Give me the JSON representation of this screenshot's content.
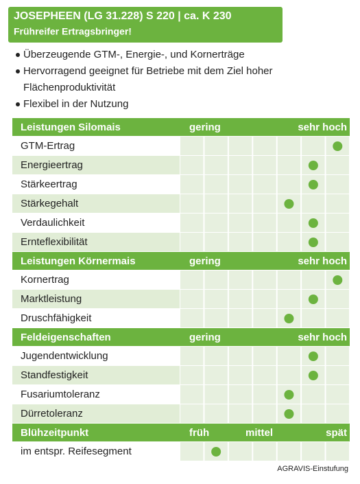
{
  "header": {
    "title": "JOSEPHEEN (LG 31.228) S 220 | ca. K 230",
    "subtitle": "Frühreifer Ertragsbringer!"
  },
  "bullets": [
    "Überzeugende GTM-, Energie-, und Kornerträge",
    "Hervorragend geeignet für Betriebe mit dem Ziel hoher",
    "Flächenproduktivität",
    "Flexibel in der Nutzung"
  ],
  "sections": [
    {
      "title": "Leistungen Silomais",
      "scale": [
        "gering",
        "sehr hoch"
      ],
      "rows": [
        {
          "label": "GTM-Ertrag",
          "rating": 7
        },
        {
          "label": "Energieertrag",
          "rating": 6
        },
        {
          "label": "Stärkeertrag",
          "rating": 6
        },
        {
          "label": "Stärkegehalt",
          "rating": 5
        },
        {
          "label": "Verdaulichkeit",
          "rating": 6
        },
        {
          "label": "Ernteflexibilität",
          "rating": 6
        }
      ]
    },
    {
      "title": "Leistungen Körnermais",
      "scale": [
        "gering",
        "sehr hoch"
      ],
      "rows": [
        {
          "label": "Kornertrag",
          "rating": 7
        },
        {
          "label": "Marktleistung",
          "rating": 6
        },
        {
          "label": "Druschfähigkeit",
          "rating": 5
        }
      ]
    },
    {
      "title": "Feldeigenschaften",
      "scale": [
        "gering",
        "sehr hoch"
      ],
      "rows": [
        {
          "label": "Jugendentwicklung",
          "rating": 6
        },
        {
          "label": "Standfestigkeit",
          "rating": 6
        },
        {
          "label": "Fusariumtoleranz",
          "rating": 5
        },
        {
          "label": "Dürretoleranz",
          "rating": 5
        }
      ]
    },
    {
      "title": "Blühzeitpunkt",
      "scale": [
        "früh",
        "mittel",
        "spät"
      ],
      "rows": [
        {
          "label": "im entspr. Reifesegment",
          "rating": 2
        }
      ]
    }
  ],
  "footer": "AGRAVIS-Einstufung"
}
